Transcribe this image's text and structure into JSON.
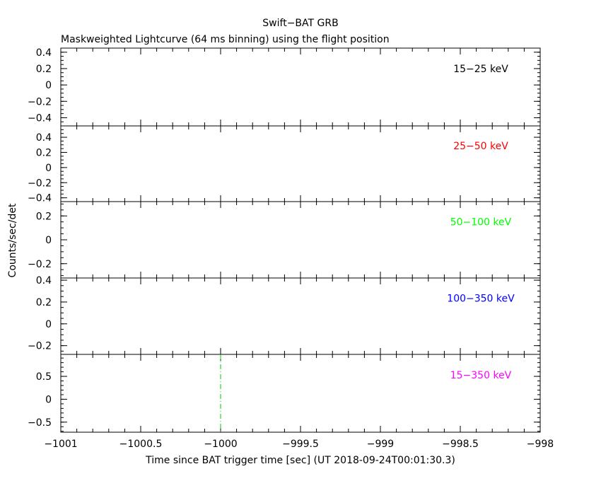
{
  "chart_data": {
    "type": "line",
    "title": "Swift−BAT GRB",
    "subtitle": "Maskweighted Lightcurve (64 ms binning) using the flight position",
    "xlabel": "Time since BAT trigger time [sec] (UT 2018-09-24T00:01:30.3)",
    "ylabel": "Counts/sec/det",
    "xlim": [
      -1001,
      -998
    ],
    "x_ticks": [
      -1001,
      -1000.5,
      -1000,
      -999.5,
      -999,
      -998.5,
      -998
    ],
    "x_tick_labels": [
      "−1001",
      "−1000.5",
      "−1000",
      "−999.5",
      "−999",
      "−998.5",
      "−998"
    ],
    "trigger_marker_x": -1000,
    "panels": [
      {
        "band": "15−25 keV",
        "color": "#000000",
        "ylim": [
          -0.5,
          0.45
        ],
        "y_ticks": [
          -0.4,
          -0.2,
          0,
          0.2,
          0.4
        ],
        "y_tick_labels": [
          "−0.4",
          "−0.2",
          "0",
          "0.2",
          "0.4"
        ],
        "minor_step": 0.05,
        "values": []
      },
      {
        "band": "25−50 keV",
        "color": "#ff0000",
        "ylim": [
          -0.45,
          0.55
        ],
        "y_ticks": [
          -0.4,
          -0.2,
          0,
          0.2,
          0.4
        ],
        "y_tick_labels": [
          "−0.4",
          "−0.2",
          "0",
          "0.2",
          "0.4"
        ],
        "minor_step": 0.05,
        "values": []
      },
      {
        "band": "50−100 keV",
        "color": "#00ff00",
        "ylim": [
          -0.32,
          0.32
        ],
        "y_ticks": [
          -0.2,
          0,
          0.2
        ],
        "y_tick_labels": [
          "−0.2",
          "0",
          "0.2"
        ],
        "minor_step": 0.05,
        "values": []
      },
      {
        "band": "100−350 keV",
        "color": "#0000ff",
        "ylim": [
          -0.28,
          0.42
        ],
        "y_ticks": [
          -0.2,
          0,
          0.2,
          0.4
        ],
        "y_tick_labels": [
          "−0.2",
          "0",
          "0.2",
          "0.4"
        ],
        "minor_step": 0.05,
        "values": []
      },
      {
        "band": "15−350 keV",
        "color": "#ff00ff",
        "ylim": [
          -0.72,
          0.98
        ],
        "y_ticks": [
          -0.5,
          0,
          0.5
        ],
        "y_tick_labels": [
          "−0.5",
          "0",
          "0.5"
        ],
        "minor_step": 0.1,
        "values": []
      }
    ],
    "grid": false,
    "legend": "none"
  }
}
